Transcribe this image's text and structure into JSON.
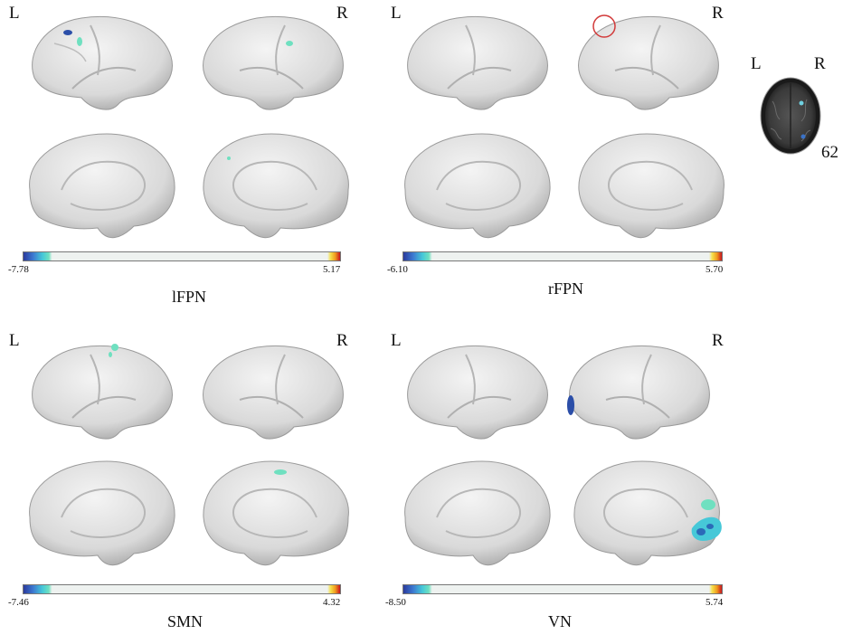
{
  "panels": [
    {
      "id": "lfpn",
      "left_label": "L",
      "right_label": "R",
      "min": "-7.78",
      "max": "5.17",
      "name": "lFPN"
    },
    {
      "id": "rfpn",
      "left_label": "L",
      "right_label": "R",
      "min": "-6.10",
      "max": "5.70",
      "name": "rFPN"
    },
    {
      "id": "smn",
      "left_label": "L",
      "right_label": "R",
      "min": "-7.46",
      "max": "4.32",
      "name": "SMN"
    },
    {
      "id": "vn",
      "left_label": "L",
      "right_label": "R",
      "min": "-8.50",
      "max": "5.74",
      "name": "VN"
    }
  ],
  "axial": {
    "left_label": "L",
    "right_label": "R",
    "slice": "62"
  },
  "colors": {
    "blob": "#6fe0c0",
    "blob_dark": "#2b4ea8",
    "marker": "#d23a3a",
    "brain": "#e8e8e8"
  }
}
